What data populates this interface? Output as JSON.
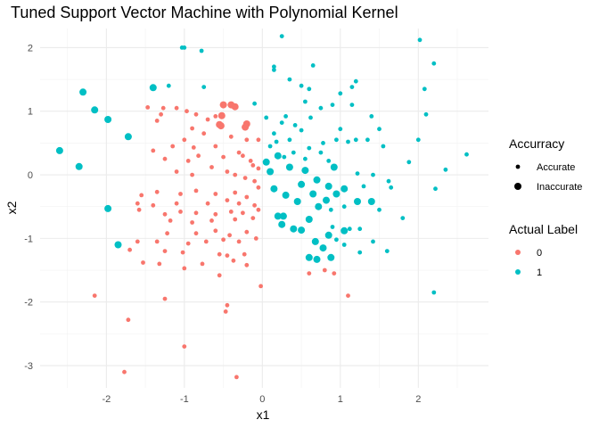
{
  "chart_data": {
    "type": "scatter",
    "title": "Tuned Support Vector Machine with Polynomial Kernel",
    "xlabel": "x1",
    "ylabel": "x2",
    "xlim": [
      -2.85,
      2.9
    ],
    "ylim": [
      -3.35,
      2.3
    ],
    "x_ticks": [
      -2,
      -1,
      0,
      1,
      2
    ],
    "y_ticks": [
      -3,
      -2,
      -1,
      0,
      1,
      2
    ],
    "x_tick_labels": [
      "-2",
      "-1",
      "0",
      "1",
      "2"
    ],
    "y_tick_labels": [
      "-3",
      "-2",
      "-1",
      "0",
      "1",
      "2"
    ],
    "grid": true,
    "legend_position": "right",
    "size_legend": {
      "title": "Accurracy",
      "entries": [
        "Accurate",
        "Inaccurate"
      ]
    },
    "color_legend": {
      "title": "Actual Label",
      "entries": [
        "0",
        "1"
      ],
      "colors": [
        "#F8766D",
        "#00BFC4"
      ]
    },
    "series": [
      {
        "name": "0",
        "color": "#F8766D",
        "points": [
          [
            -0.5,
            1.1,
            1
          ],
          [
            -0.4,
            1.1,
            1
          ],
          [
            -0.35,
            1.07,
            1
          ],
          [
            -0.52,
            0.93,
            1
          ],
          [
            -0.53,
            0.77,
            1
          ],
          [
            -0.2,
            0.8,
            1
          ],
          [
            -0.22,
            0.75,
            1
          ],
          [
            -0.55,
            0.79,
            1
          ],
          [
            -1.47,
            1.06,
            0
          ],
          [
            -1.27,
            1.05,
            0
          ],
          [
            -1.1,
            1.05,
            0
          ],
          [
            -1.3,
            0.95,
            0
          ],
          [
            -0.97,
            1.0,
            0
          ],
          [
            -0.85,
            0.95,
            0
          ],
          [
            -0.6,
            0.92,
            0
          ],
          [
            -0.7,
            0.87,
            0
          ],
          [
            -1.35,
            0.85,
            0
          ],
          [
            -0.9,
            0.73,
            0
          ],
          [
            -0.75,
            0.65,
            0
          ],
          [
            -0.4,
            0.6,
            0
          ],
          [
            -0.2,
            0.55,
            0
          ],
          [
            -0.05,
            0.55,
            0
          ],
          [
            -1.0,
            0.55,
            0
          ],
          [
            -1.15,
            0.45,
            0
          ],
          [
            -0.88,
            0.43,
            0
          ],
          [
            -0.6,
            0.45,
            0
          ],
          [
            -0.3,
            0.35,
            0
          ],
          [
            -1.4,
            0.38,
            0
          ],
          [
            -1.25,
            0.25,
            0
          ],
          [
            -0.95,
            0.22,
            0
          ],
          [
            -0.82,
            0.3,
            0
          ],
          [
            -0.5,
            0.28,
            0
          ],
          [
            -0.25,
            0.3,
            0
          ],
          [
            -0.15,
            0.22,
            0
          ],
          [
            -0.12,
            0.15,
            0
          ],
          [
            -0.05,
            0.1,
            0
          ],
          [
            -0.65,
            0.12,
            0
          ],
          [
            -1.1,
            0.05,
            0
          ],
          [
            -0.9,
            0.0,
            0
          ],
          [
            -0.45,
            0.05,
            0
          ],
          [
            -0.35,
            0.0,
            0
          ],
          [
            -0.22,
            -0.05,
            0
          ],
          [
            -0.1,
            -0.1,
            0
          ],
          [
            -0.05,
            -0.2,
            0
          ],
          [
            -1.35,
            -0.27,
            0
          ],
          [
            -1.55,
            -0.32,
            0
          ],
          [
            -1.05,
            -0.3,
            0
          ],
          [
            -0.85,
            -0.25,
            0
          ],
          [
            -0.6,
            -0.3,
            0
          ],
          [
            -0.35,
            -0.28,
            0
          ],
          [
            -0.2,
            -0.35,
            0
          ],
          [
            -1.6,
            -0.45,
            0
          ],
          [
            -1.4,
            -0.48,
            0
          ],
          [
            -1.1,
            -0.45,
            0
          ],
          [
            -0.7,
            -0.45,
            0
          ],
          [
            -0.45,
            -0.4,
            0
          ],
          [
            -0.3,
            -0.45,
            0
          ],
          [
            -0.1,
            -0.48,
            0
          ],
          [
            -1.58,
            -0.55,
            0
          ],
          [
            -1.25,
            -0.62,
            0
          ],
          [
            -1.05,
            -0.58,
            0
          ],
          [
            -0.85,
            -0.6,
            0
          ],
          [
            -0.6,
            -0.62,
            0
          ],
          [
            -0.4,
            -0.58,
            0
          ],
          [
            -0.25,
            -0.6,
            0
          ],
          [
            -0.05,
            -0.55,
            0
          ],
          [
            -1.18,
            -0.72,
            0
          ],
          [
            -0.9,
            -0.75,
            0
          ],
          [
            -0.65,
            -0.72,
            0
          ],
          [
            -0.35,
            -0.7,
            0
          ],
          [
            -0.12,
            -0.68,
            0
          ],
          [
            -1.22,
            -0.92,
            0
          ],
          [
            -0.85,
            -0.92,
            0
          ],
          [
            -0.6,
            -0.88,
            0
          ],
          [
            -0.42,
            -0.95,
            0
          ],
          [
            -0.2,
            -0.9,
            0
          ],
          [
            -1.35,
            -1.05,
            0
          ],
          [
            -0.95,
            -1.08,
            0
          ],
          [
            -0.72,
            -1.05,
            0
          ],
          [
            -0.5,
            -1.02,
            0
          ],
          [
            -0.3,
            -1.05,
            0
          ],
          [
            -0.08,
            -1.0,
            0
          ],
          [
            -1.6,
            -1.05,
            0
          ],
          [
            -1.7,
            -1.18,
            0
          ],
          [
            -1.25,
            -1.2,
            0
          ],
          [
            -1.02,
            -1.22,
            0
          ],
          [
            -0.55,
            -1.25,
            0
          ],
          [
            -0.45,
            -1.27,
            0
          ],
          [
            -0.23,
            -1.25,
            0
          ],
          [
            -1.53,
            -1.38,
            0
          ],
          [
            -1.32,
            -1.4,
            0
          ],
          [
            -0.77,
            -1.4,
            0
          ],
          [
            -0.37,
            -1.35,
            0
          ],
          [
            -0.2,
            -1.42,
            0
          ],
          [
            -1.0,
            -1.47,
            0
          ],
          [
            -0.55,
            -1.58,
            0
          ],
          [
            -0.02,
            -1.75,
            0
          ],
          [
            -2.15,
            -1.9,
            0
          ],
          [
            -1.25,
            -1.95,
            0
          ],
          [
            -0.45,
            -2.05,
            0
          ],
          [
            -0.47,
            -2.15,
            0
          ],
          [
            -1.72,
            -2.28,
            0
          ],
          [
            -1.0,
            -2.7,
            0
          ],
          [
            -1.77,
            -3.1,
            0
          ],
          [
            -0.33,
            -3.18,
            0
          ],
          [
            0.6,
            -1.55,
            0
          ],
          [
            0.8,
            -1.5,
            0
          ],
          [
            0.92,
            -1.55,
            0
          ],
          [
            1.1,
            -1.9,
            0
          ]
        ]
      },
      {
        "name": "1",
        "color": "#00BFC4",
        "points": [
          [
            -2.6,
            0.38,
            1
          ],
          [
            -2.35,
            0.13,
            1
          ],
          [
            -2.3,
            1.3,
            1
          ],
          [
            -2.15,
            1.02,
            1
          ],
          [
            -1.98,
            0.87,
            1
          ],
          [
            -1.85,
            -1.1,
            1
          ],
          [
            -1.72,
            0.6,
            1
          ],
          [
            -1.98,
            -0.53,
            1
          ],
          [
            -1.4,
            1.37,
            1
          ],
          [
            0.05,
            0.2,
            1
          ],
          [
            0.1,
            0.05,
            1
          ],
          [
            0.2,
            0.3,
            1
          ],
          [
            0.35,
            0.12,
            1
          ],
          [
            0.15,
            -0.22,
            1
          ],
          [
            0.3,
            -0.32,
            1
          ],
          [
            0.45,
            -0.42,
            1
          ],
          [
            0.2,
            -0.65,
            1
          ],
          [
            0.25,
            -0.78,
            1
          ],
          [
            0.4,
            -0.85,
            1
          ],
          [
            0.27,
            -0.65,
            1
          ],
          [
            0.5,
            -0.15,
            1
          ],
          [
            0.55,
            0.07,
            1
          ],
          [
            0.7,
            -0.08,
            1
          ],
          [
            0.85,
            -0.18,
            1
          ],
          [
            0.65,
            -0.3,
            1
          ],
          [
            0.82,
            -0.4,
            1
          ],
          [
            0.95,
            -0.3,
            1
          ],
          [
            0.72,
            -0.5,
            1
          ],
          [
            0.6,
            -0.7,
            1
          ],
          [
            0.5,
            -0.87,
            1
          ],
          [
            0.68,
            -1.05,
            1
          ],
          [
            0.78,
            -1.15,
            1
          ],
          [
            0.6,
            -1.3,
            1
          ],
          [
            0.7,
            -1.33,
            1
          ],
          [
            0.88,
            -1.3,
            1
          ],
          [
            0.92,
            0.12,
            1
          ],
          [
            1.05,
            -0.22,
            1
          ],
          [
            1.22,
            -0.42,
            1
          ],
          [
            1.4,
            -0.42,
            1
          ],
          [
            0.85,
            -0.95,
            1
          ],
          [
            1.05,
            -0.88,
            1
          ],
          [
            -1.2,
            1.4,
            0
          ],
          [
            -0.75,
            1.38,
            0
          ],
          [
            -1.0,
            2.0,
            0
          ],
          [
            -1.03,
            2.0,
            0
          ],
          [
            -0.78,
            1.95,
            0
          ],
          [
            -0.1,
            1.12,
            0
          ],
          [
            0.05,
            0.9,
            0
          ],
          [
            0.15,
            0.65,
            0
          ],
          [
            0.25,
            0.82,
            0
          ],
          [
            0.3,
            0.92,
            0
          ],
          [
            0.42,
            0.78,
            0
          ],
          [
            0.5,
            0.7,
            0
          ],
          [
            0.35,
            0.55,
            0
          ],
          [
            0.18,
            0.52,
            0
          ],
          [
            0.1,
            0.45,
            0
          ],
          [
            0.28,
            0.28,
            0
          ],
          [
            0.4,
            0.35,
            0
          ],
          [
            0.6,
            0.42,
            0
          ],
          [
            0.75,
            0.35,
            0
          ],
          [
            0.85,
            0.22,
            0
          ],
          [
            0.55,
            0.25,
            0
          ],
          [
            0.78,
            0.5,
            0
          ],
          [
            0.95,
            0.55,
            0
          ],
          [
            1.1,
            0.52,
            0
          ],
          [
            1.2,
            0.55,
            0
          ],
          [
            1.0,
            0.72,
            0
          ],
          [
            0.62,
            0.9,
            0
          ],
          [
            0.75,
            1.05,
            0
          ],
          [
            0.9,
            1.1,
            0
          ],
          [
            1.15,
            1.1,
            0
          ],
          [
            0.55,
            1.15,
            0
          ],
          [
            0.6,
            1.35,
            0
          ],
          [
            0.5,
            1.4,
            0
          ],
          [
            0.35,
            1.5,
            0
          ],
          [
            0.15,
            1.65,
            0
          ],
          [
            0.15,
            1.7,
            0
          ],
          [
            0.25,
            2.18,
            0
          ],
          [
            0.65,
            1.72,
            0
          ],
          [
            1.0,
            1.28,
            0
          ],
          [
            1.15,
            1.38,
            0
          ],
          [
            1.2,
            1.47,
            0
          ],
          [
            1.4,
            0.92,
            0
          ],
          [
            1.5,
            0.72,
            0
          ],
          [
            1.35,
            0.55,
            0
          ],
          [
            1.55,
            0.45,
            0
          ],
          [
            1.22,
            0.02,
            0
          ],
          [
            1.42,
            0.0,
            0
          ],
          [
            1.62,
            -0.1,
            0
          ],
          [
            1.65,
            -0.2,
            0
          ],
          [
            1.5,
            -0.55,
            0
          ],
          [
            1.8,
            -0.68,
            0
          ],
          [
            1.88,
            0.2,
            0
          ],
          [
            2.0,
            0.55,
            0
          ],
          [
            2.1,
            0.95,
            0
          ],
          [
            2.08,
            1.35,
            0
          ],
          [
            2.2,
            1.75,
            0
          ],
          [
            2.02,
            2.12,
            0
          ],
          [
            2.22,
            -0.22,
            0
          ],
          [
            2.35,
            0.08,
            0
          ],
          [
            2.62,
            0.32,
            0
          ],
          [
            0.9,
            -0.82,
            0
          ],
          [
            1.12,
            -0.85,
            0
          ],
          [
            1.25,
            -0.85,
            0
          ],
          [
            1.05,
            -1.1,
            0
          ],
          [
            0.95,
            -1.02,
            0
          ],
          [
            1.25,
            -1.22,
            0
          ],
          [
            1.42,
            -1.05,
            0
          ],
          [
            1.6,
            -1.2,
            0
          ],
          [
            1.3,
            -0.18,
            0
          ],
          [
            2.2,
            -1.85,
            0
          ],
          [
            0.88,
            -0.55,
            0
          ],
          [
            1.05,
            -0.5,
            0
          ]
        ]
      }
    ]
  }
}
